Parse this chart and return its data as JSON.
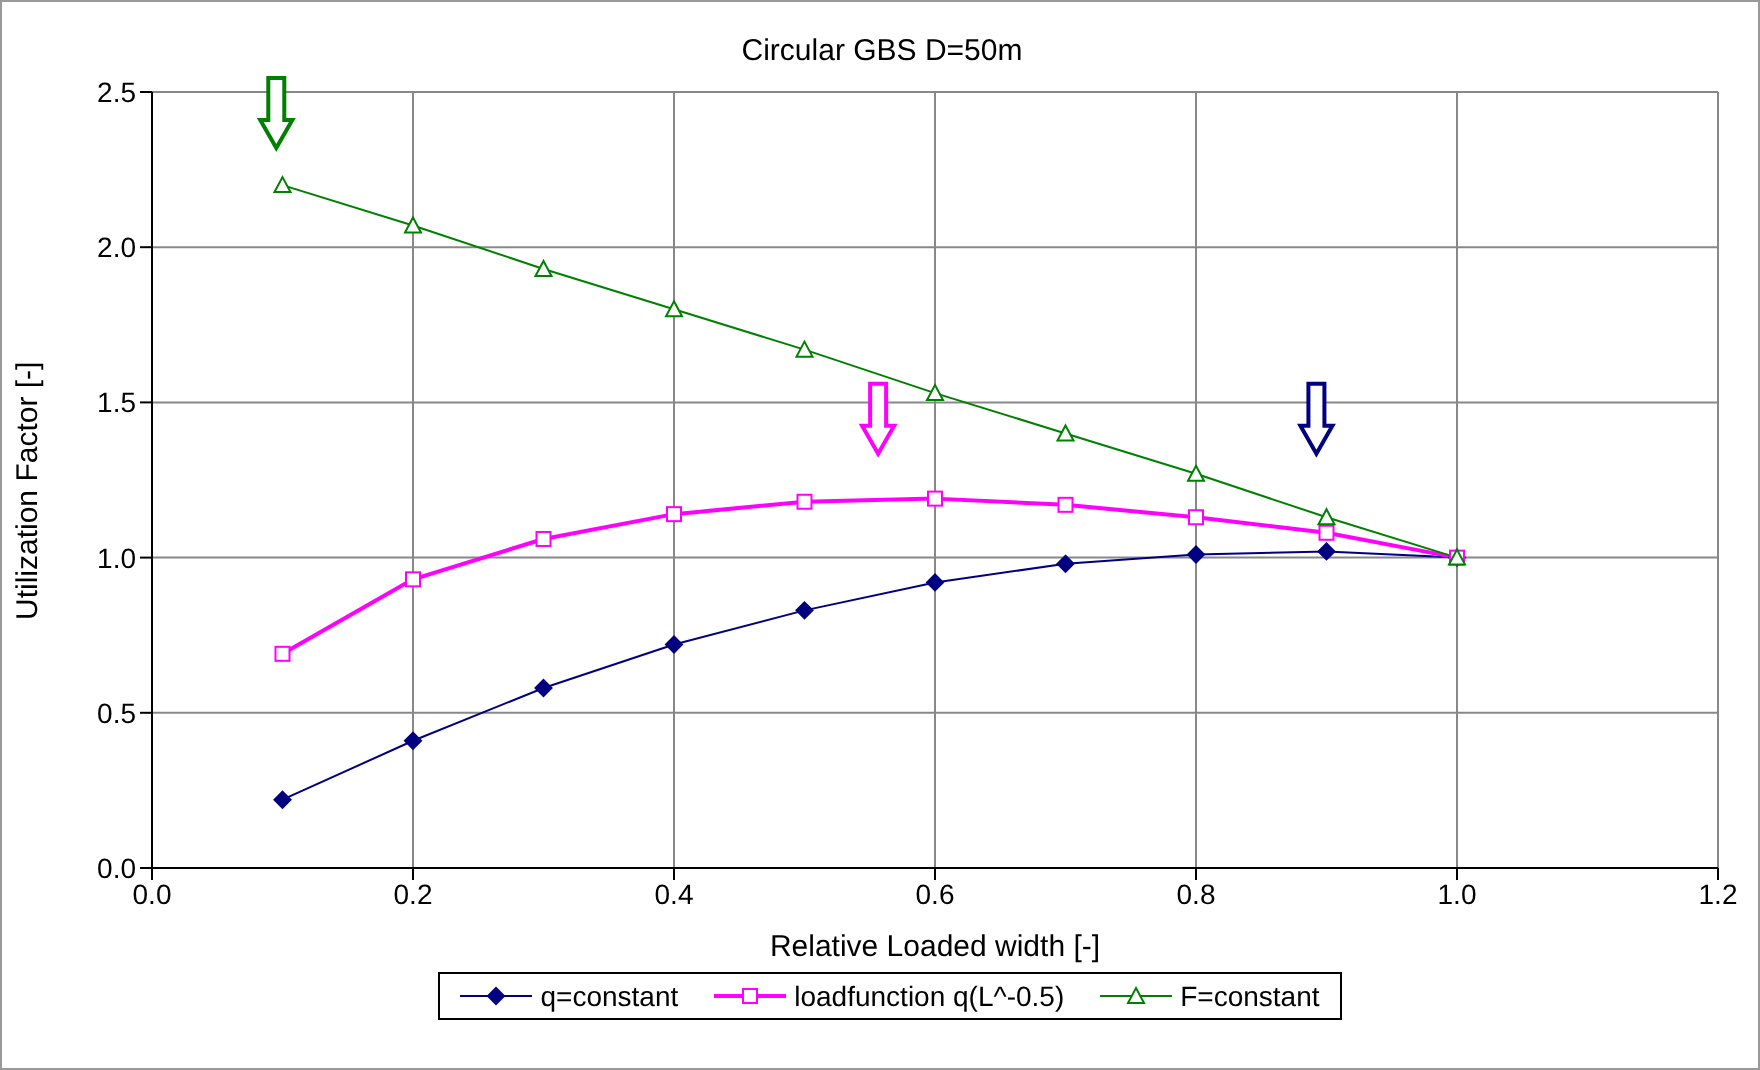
{
  "chart_data": {
    "type": "line",
    "title": "Circular GBS D=50m",
    "xlabel": "Relative Loaded width [-]",
    "ylabel": "Utilization Factor [-]",
    "x": [
      0.1,
      0.2,
      0.3,
      0.4,
      0.5,
      0.6,
      0.7,
      0.8,
      0.9,
      1.0
    ],
    "series": [
      {
        "name": "q=constant",
        "color": "#000080",
        "marker": "diamond",
        "values": [
          0.22,
          0.41,
          0.58,
          0.72,
          0.83,
          0.92,
          0.98,
          1.01,
          1.02,
          1.0
        ]
      },
      {
        "name": "loadfunction q(L^-0.5)",
        "color": "#ff00ff",
        "marker": "square",
        "values": [
          0.69,
          0.93,
          1.06,
          1.14,
          1.18,
          1.19,
          1.17,
          1.13,
          1.08,
          1.0
        ]
      },
      {
        "name": "F=constant",
        "color": "#008000",
        "marker": "triangle",
        "values": [
          2.2,
          2.07,
          1.93,
          1.8,
          1.67,
          1.53,
          1.4,
          1.27,
          1.13,
          1.0
        ]
      }
    ],
    "xlim": [
      0,
      1.2
    ],
    "xticks": [
      {
        "value": 0,
        "label": "0.0"
      },
      {
        "value": 0.2,
        "label": "0.2"
      },
      {
        "value": 0.4,
        "label": "0.4"
      },
      {
        "value": 0.6,
        "label": "0.6"
      },
      {
        "value": 0.8,
        "label": "0.8"
      },
      {
        "value": 1.0,
        "label": "1.0"
      },
      {
        "value": 1.2,
        "label": "1.2"
      }
    ],
    "ylim": [
      0,
      2.5
    ],
    "yticks": [
      {
        "value": 0,
        "label": "0.0"
      },
      {
        "value": 0.5,
        "label": "0.5"
      },
      {
        "value": 1.0,
        "label": "1.0"
      },
      {
        "value": 1.5,
        "label": "1.5"
      },
      {
        "value": 2.0,
        "label": "2.0"
      },
      {
        "value": 2.5,
        "label": "2.5"
      }
    ],
    "grid": true,
    "legend": "bottom",
    "line_style": "solid"
  }
}
